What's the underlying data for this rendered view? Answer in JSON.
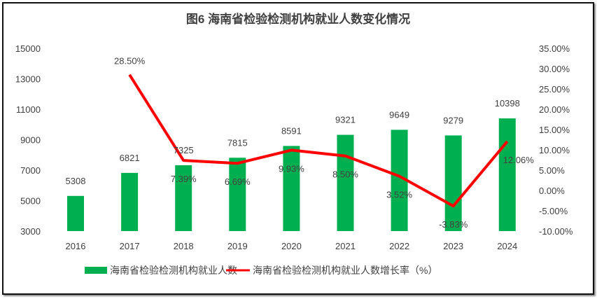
{
  "chart_data": {
    "type": "bar+line",
    "title": "图6  海南省检验检测机构就业人数变化情况",
    "categories": [
      "2016",
      "2017",
      "2018",
      "2019",
      "2020",
      "2021",
      "2022",
      "2023",
      "2024"
    ],
    "series": [
      {
        "name": "海南省检验检测机构就业人数",
        "type": "bar",
        "axis": "left",
        "color": "#00B050",
        "values": [
          5308,
          6821,
          7325,
          7815,
          8591,
          9321,
          9649,
          9279,
          10398
        ],
        "labels": [
          "5308",
          "6821",
          "7325",
          "7815",
          "8591",
          "9321",
          "9649",
          "9279",
          "10398"
        ]
      },
      {
        "name": "海南省检验检测机构就业人数增长率（%）",
        "type": "line",
        "axis": "right",
        "color": "#FF0000",
        "values": [
          null,
          28.5,
          7.39,
          6.69,
          9.93,
          8.5,
          3.52,
          -3.83,
          12.06
        ],
        "labels": [
          "",
          "28.50%",
          "7.39%",
          "6.69%",
          "9.93%",
          "8.50%",
          "3.52%",
          "-3.83%",
          "12.06%"
        ]
      }
    ],
    "y_left": {
      "range": [
        3000,
        15000
      ],
      "ticks": [
        "3000",
        "5000",
        "7000",
        "9000",
        "11000",
        "13000",
        "15000"
      ]
    },
    "y_right": {
      "range": [
        -10,
        35
      ],
      "ticks": [
        "-10.00%",
        "-5.00%",
        "0.00%",
        "5.00%",
        "10.00%",
        "15.00%",
        "20.00%",
        "25.00%",
        "30.00%",
        "35.00%"
      ]
    },
    "grid": false,
    "legend_placement": "bottom"
  }
}
